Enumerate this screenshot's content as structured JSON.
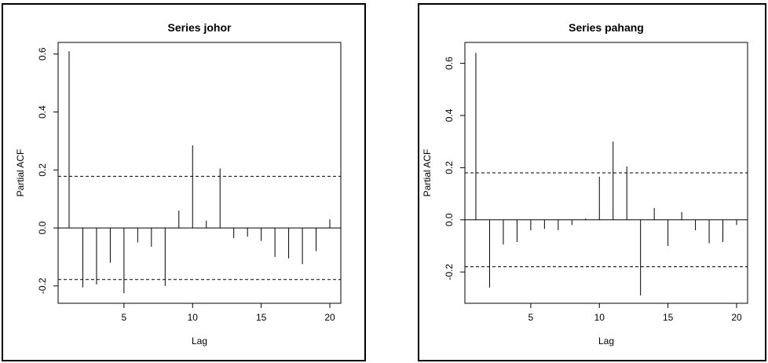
{
  "chart_data": [
    {
      "type": "bar",
      "title": "Series  johor",
      "xlabel": "Lag",
      "ylabel": "Partial ACF",
      "x": [
        1,
        2,
        3,
        4,
        5,
        6,
        7,
        8,
        9,
        10,
        11,
        12,
        13,
        14,
        15,
        16,
        17,
        18,
        19,
        20
      ],
      "values": [
        0.61,
        -0.205,
        -0.195,
        -0.12,
        -0.225,
        -0.05,
        -0.065,
        -0.2,
        0.06,
        0.285,
        0.025,
        0.205,
        -0.035,
        -0.03,
        -0.045,
        -0.1,
        -0.105,
        -0.125,
        -0.08,
        0.03
      ],
      "ci": 0.178,
      "xlim": [
        0.2,
        20.8
      ],
      "ylim": [
        -0.26,
        0.64
      ],
      "xticks": [
        5,
        10,
        15,
        20
      ],
      "yticks": [
        -0.2,
        0.0,
        0.2,
        0.4,
        0.6
      ],
      "xtick_labels": [
        "5",
        "10",
        "15",
        "20"
      ],
      "ytick_labels": [
        "-0.2",
        "0.0",
        "0.2",
        "0.4",
        "0.6"
      ]
    },
    {
      "type": "bar",
      "title": "Series  pahang",
      "xlabel": "Lag",
      "ylabel": "Partial ACF",
      "x": [
        1,
        2,
        3,
        4,
        5,
        6,
        7,
        8,
        9,
        10,
        11,
        12,
        13,
        14,
        15,
        16,
        17,
        18,
        19,
        20
      ],
      "values": [
        0.64,
        -0.26,
        -0.095,
        -0.085,
        -0.04,
        -0.035,
        -0.04,
        -0.02,
        0.005,
        0.165,
        0.3,
        0.205,
        -0.29,
        0.045,
        -0.1,
        0.03,
        -0.04,
        -0.09,
        -0.085,
        -0.02
      ],
      "ci": 0.18,
      "xlim": [
        0.2,
        20.8
      ],
      "ylim": [
        -0.32,
        0.68
      ],
      "xticks": [
        5,
        10,
        15,
        20
      ],
      "yticks": [
        -0.2,
        0.0,
        0.2,
        0.4,
        0.6
      ],
      "xtick_labels": [
        "5",
        "10",
        "15",
        "20"
      ],
      "ytick_labels": [
        "-0.2",
        "0.0",
        "0.2",
        "0.4",
        "0.6"
      ]
    }
  ]
}
